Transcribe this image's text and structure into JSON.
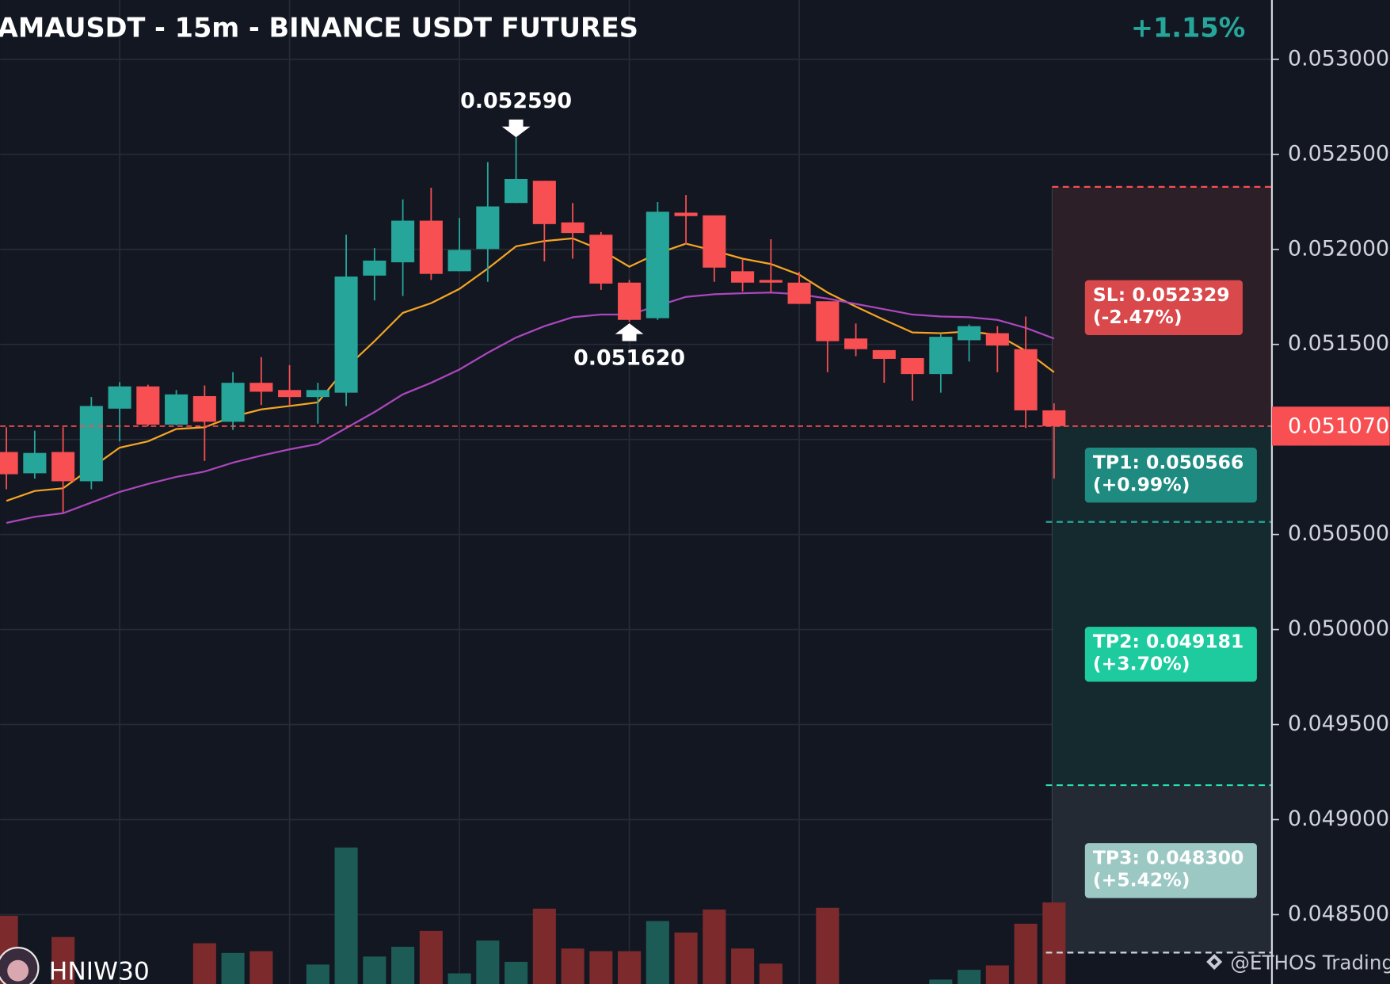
{
  "chart_data": {
    "type": "candlestick",
    "title": "AMAUSDT - 15m - BINANCE USDT FUTURES",
    "change": "+1.15%",
    "categories": [
      null,
      null,
      null,
      null,
      null,
      null,
      null,
      null,
      null,
      null,
      null,
      null,
      null,
      null,
      null,
      null,
      null,
      null,
      null,
      null,
      null,
      null,
      null,
      null,
      null,
      null,
      null,
      null,
      null,
      null,
      null,
      null,
      null,
      null,
      null,
      null,
      null,
      null
    ],
    "open": [
      0.050934,
      0.050822,
      0.050934,
      0.05078,
      0.051162,
      0.051279,
      0.051078,
      0.051228,
      0.051093,
      0.051298,
      0.05126,
      0.051223,
      0.051246,
      0.051862,
      0.051932,
      0.052151,
      0.051885,
      0.052002,
      0.052244,
      0.052361,
      0.052142,
      0.052077,
      0.051825,
      0.051638,
      0.052193,
      0.052179,
      0.051885,
      0.051839,
      0.051825,
      0.051727,
      0.051531,
      0.05147,
      0.051428,
      0.051344,
      0.051522,
      0.051559,
      0.051475,
      0.051153
    ],
    "high": [
      0.051064,
      0.051046,
      0.051064,
      0.051223,
      0.051302,
      0.051288,
      0.05126,
      0.051284,
      0.051354,
      0.051433,
      0.051391,
      0.051298,
      0.052077,
      0.052007,
      0.052263,
      0.052324,
      0.052165,
      0.052459,
      0.05259,
      0.052361,
      0.052244,
      0.052091,
      0.051839,
      0.052249,
      0.052286,
      0.052179,
      0.051946,
      0.052053,
      0.051881,
      0.051727,
      0.05161,
      0.05147,
      0.051428,
      0.051554,
      0.051605,
      0.051596,
      0.051647,
      0.05119
    ],
    "low": [
      0.050738,
      0.050794,
      0.050617,
      0.050738,
      0.05099,
      0.051069,
      0.051074,
      0.050887,
      0.05105,
      0.051181,
      0.051181,
      0.051083,
      0.051176,
      0.051731,
      0.051755,
      0.051839,
      0.051885,
      0.051829,
      0.052244,
      0.051937,
      0.051951,
      0.051787,
      0.05162,
      0.051629,
      0.052025,
      0.051829,
      0.051778,
      0.051773,
      0.051713,
      0.051354,
      0.051438,
      0.051298,
      0.051204,
      0.051246,
      0.05141,
      0.051354,
      0.05106,
      0.050794
    ],
    "close": [
      0.050817,
      0.050929,
      0.05078,
      0.051176,
      0.051279,
      0.051078,
      0.051237,
      0.051093,
      0.051298,
      0.051251,
      0.051223,
      0.05126,
      0.051857,
      0.051941,
      0.052151,
      0.051871,
      0.051997,
      0.052226,
      0.05237,
      0.052133,
      0.052086,
      0.05182,
      0.051629,
      0.052198,
      0.052175,
      0.051904,
      0.051825,
      0.051825,
      0.051713,
      0.051517,
      0.051475,
      0.051424,
      0.051344,
      0.05154,
      0.051596,
      0.051494,
      0.051153,
      0.05107
    ],
    "up_color": "#26a69a",
    "down_color": "#f74f52",
    "volume": [
      77,
      null,
      53,
      null,
      null,
      null,
      null,
      46,
      35,
      37,
      null,
      22,
      154,
      31,
      42,
      60,
      12,
      49,
      25,
      85,
      40,
      37,
      37,
      71,
      58,
      84,
      40,
      23,
      null,
      86,
      null,
      null,
      null,
      5,
      16,
      21,
      68,
      92
    ],
    "volume_lim": [
      0,
      160
    ],
    "volume_up_color": "#1d5b57",
    "volume_down_color": "#7c2a2c",
    "lines": [
      {
        "color": "#f5a524",
        "values": [
          0.050677,
          0.050729,
          0.050743,
          0.05085,
          0.050957,
          0.05099,
          0.051055,
          0.051064,
          0.05112,
          0.051158,
          0.051176,
          0.051195,
          0.051377,
          0.051517,
          0.051666,
          0.051717,
          0.051792,
          0.051899,
          0.052016,
          0.052044,
          0.052058,
          0.051997,
          0.051909,
          0.051979,
          0.05203,
          0.051993,
          0.051951,
          0.051923,
          0.051867,
          0.051773,
          0.051699,
          0.051629,
          0.051563,
          0.051559,
          0.051568,
          0.05155,
          0.051466,
          0.051354
        ]
      },
      {
        "color": "#ab47bc",
        "values": [
          0.050561,
          0.050593,
          0.050612,
          0.050668,
          0.050724,
          0.050766,
          0.050803,
          0.050831,
          0.050878,
          0.050915,
          0.050948,
          0.050976,
          0.05106,
          0.051144,
          0.051237,
          0.051298,
          0.051368,
          0.051456,
          0.051536,
          0.051596,
          0.051643,
          0.051657,
          0.051657,
          0.051703,
          0.05175,
          0.051764,
          0.051769,
          0.051773,
          0.051764,
          0.051741,
          0.051713,
          0.051685,
          0.051657,
          0.051647,
          0.051643,
          0.051629,
          0.051587,
          0.051531
        ]
      }
    ],
    "annotations": [
      {
        "value": 0.05259,
        "label": "0.052590",
        "kind": "high"
      },
      {
        "value": 0.05162,
        "label": "0.051620",
        "kind": "low"
      }
    ],
    "last_price": {
      "value": 0.05107,
      "label": "0.051070",
      "color": "#f74f52"
    },
    "trade_levels": [
      {
        "value": 0.052329,
        "label": "SL: 0.052329",
        "change": "(-2.47%)",
        "color": "#d9484b",
        "line_color": "#f74f52",
        "zone_color": "#2d1f27"
      },
      {
        "value": 0.050566,
        "label": "TP1: 0.050566",
        "change": "(+0.99%)",
        "color": "#1f8b80",
        "line_color": "#26a69a",
        "zone_color": "#142a2e"
      },
      {
        "value": 0.049181,
        "label": "TP2: 0.049181",
        "change": "(+3.70%)",
        "color": "#1ecb9e",
        "line_color": "#2be0b2",
        "zone_color": "#142a2e"
      },
      {
        "value": 0.0483,
        "label": "TP3: 0.048300",
        "change": "(+5.42%)",
        "color": "#9cc8c4",
        "line_color": "#d0d4dc",
        "zone_color": "#242a33"
      }
    ],
    "ylim": [
      0.048135,
      0.053312
    ],
    "yticks": [
      {
        "value": 0.053,
        "label": "0.053000"
      },
      {
        "value": 0.0525,
        "label": "0.052500"
      },
      {
        "value": 0.052,
        "label": "0.052000"
      },
      {
        "value": 0.0515,
        "label": "0.051500"
      },
      {
        "value": 0.051,
        "label": "0.051000"
      },
      {
        "value": 0.0505,
        "label": "0.050500"
      },
      {
        "value": 0.05,
        "label": "0.050000"
      },
      {
        "value": 0.0495,
        "label": "0.049500"
      },
      {
        "value": 0.049,
        "label": "0.049000"
      },
      {
        "value": 0.0485,
        "label": "0.048500"
      }
    ],
    "grid": true,
    "author": "HNIW30",
    "watermark": "@ETHOS Trading"
  }
}
